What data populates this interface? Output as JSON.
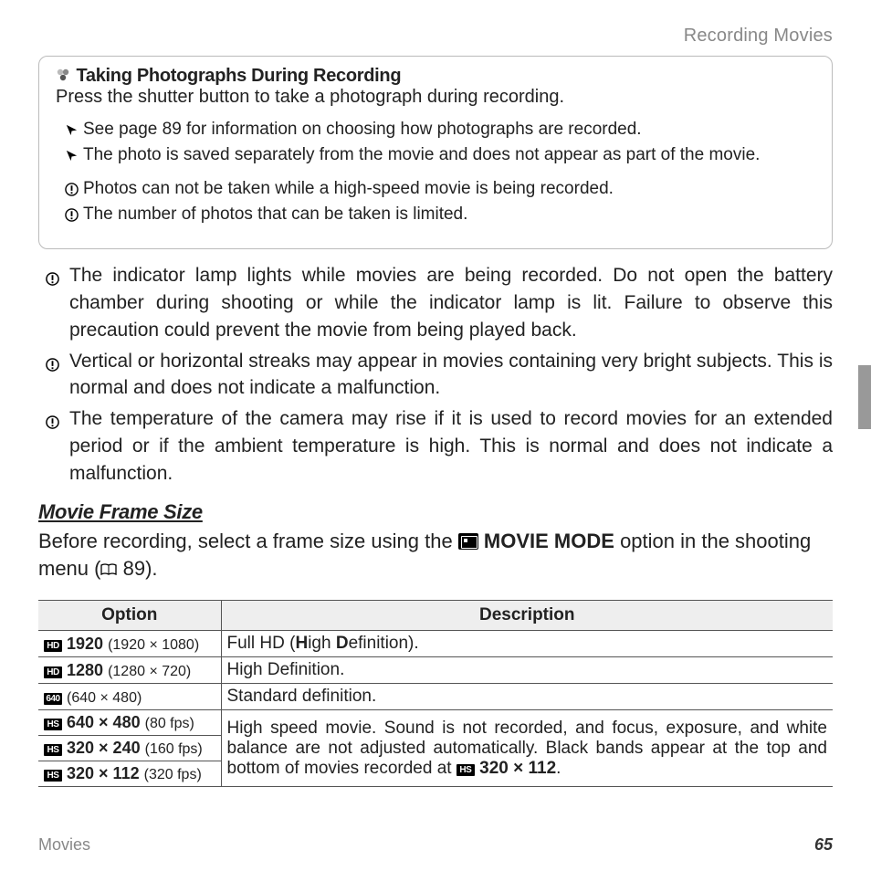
{
  "header": {
    "section": "Recording Movies"
  },
  "box": {
    "title": "Taking Photographs During Recording",
    "intro": "Press the shutter button to take a photograph during recording.",
    "tips": [
      "See page 89 for information on choosing how photographs are recorded.",
      "The photo is saved separately from the movie and does not appear as part of the movie."
    ],
    "cautions": [
      "Photos can not be taken while a high-speed movie is being recorded.",
      "The number of photos that can be taken is limited."
    ]
  },
  "page_warnings": [
    "The indicator lamp lights while movies are being recorded.  Do not open the battery chamber during shooting or while the indicator lamp is lit.  Failure to observe this precaution could prevent the movie from being played back.",
    "Vertical or horizontal streaks may appear in movies containing very bright subjects. This is normal and does not indicate a malfunction.",
    "The temperature of the camera may rise if it is used to record movies for an extended period or if the ambient temperature is high. This is normal and does not indicate a malfunction."
  ],
  "section": {
    "heading": "Movie Frame Size",
    "para_pre": "Before recording, select a frame size using the ",
    "para_mode": "MOVIE MODE",
    "para_mid": " option in the shooting menu (",
    "para_page": " 89).",
    "para_end": ""
  },
  "table": {
    "headers": {
      "option": "Option",
      "description": "Description"
    },
    "rows": [
      {
        "badge": "HD",
        "main": "1920",
        "sub": "(1920 × 1080)",
        "desc_html": "Full HD (<b>H</b>igh <b>D</b>efinition)."
      },
      {
        "badge": "HD",
        "main": "1280",
        "sub": "(1280 × 720)",
        "desc_html": "High Definition."
      },
      {
        "badge": "640",
        "main": "",
        "sub": "(640 × 480)",
        "desc_html": "Standard definition."
      }
    ],
    "hs_rows": [
      {
        "badge": "HS",
        "main": "640 × 480",
        "sub": "(80 fps)"
      },
      {
        "badge": "HS",
        "main": "320 × 240",
        "sub": "(160 fps)"
      },
      {
        "badge": "HS",
        "main": "320 × 112",
        "sub": "(320 fps)"
      }
    ],
    "hs_desc_pre": "High speed movie.  Sound is not recorded, and focus, exposure, and white balance are not adjusted automatically.  Black bands appear at the top and bottom of movies recorded at ",
    "hs_desc_badge": "HS",
    "hs_desc_bold": "320 × 112",
    "hs_desc_post": "."
  },
  "footer": {
    "label": "Movies",
    "page": "65"
  }
}
